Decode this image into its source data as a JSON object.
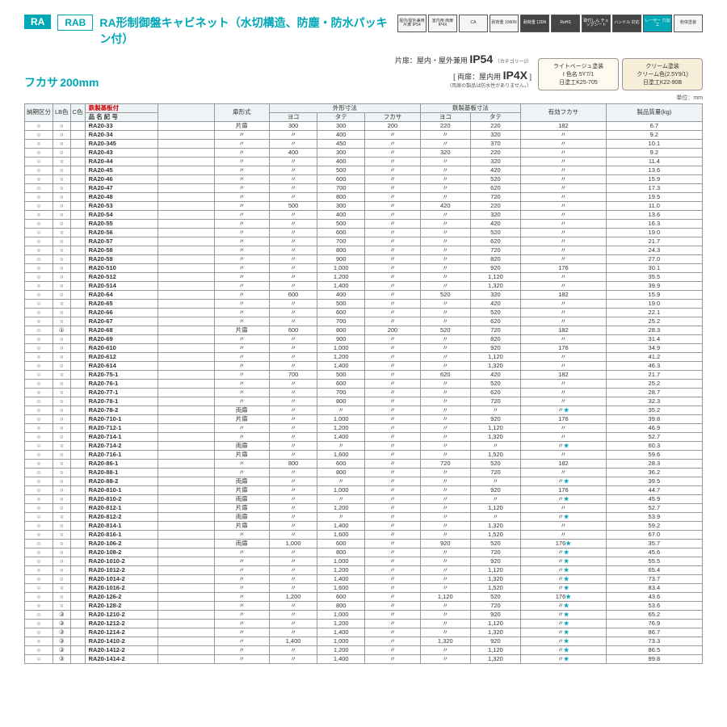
{
  "header": {
    "tag1": "RA",
    "tag2": "RAB",
    "title": "RA形制御盤キャビネット（水切構造、防塵・防水パッキン付）",
    "badges": [
      "屋内/屋外兼用\n片扉 IP54",
      "室内用\n両扉 IP4X",
      "CA",
      "耐荷重\n1080N",
      "耐荷重\n120N",
      "RoHS",
      "取付しん\nチェックシート",
      "ハンドル\n対応",
      "レーザー\n穴加工",
      "粉体塗装"
    ]
  },
  "sub": {
    "fukasa_label": "フカサ",
    "fukasa_val": "200mm",
    "door1_pre": "片扉：屋内・屋外兼用 ",
    "door1_ip": "IP54",
    "door1_note": "（カテゴリー2）",
    "door2_pre": "両扉：屋内用 ",
    "door2_ip": "IP4X",
    "door2_note": "（両扉の製品は防水性がありません。）",
    "paint1_title": "ライトベージュ塗装",
    "paint1_l1": "I 色名 5Y7/1",
    "paint1_l2": "日塗工K25-705",
    "paint2_title": "クリーム塗装",
    "paint2_l1": "クリーム色(2.5Y9/1)",
    "paint2_l2": "日塗工K22-90B",
    "unit": "単位：mm"
  },
  "columns": {
    "c0": "納期区分",
    "c1": "LB色",
    "c2": "C色",
    "c3_top": "鉄製基板付",
    "c3": "品 名 記 号",
    "c4": "",
    "c5": "扉形式",
    "g1": "外形寸法",
    "c6": "ヨコ",
    "c7": "タテ",
    "c8": "フカサ",
    "g2": "鉄製基板寸法",
    "c9": "ヨコ",
    "c10": "タテ",
    "c11": "有効フカサ",
    "c12": "製品質量(kg)",
    "c13": "摘記"
  },
  "data": [
    [
      "○",
      "○",
      "",
      "RA20-33",
      "",
      "片扉",
      "300",
      "300",
      "200",
      "220",
      "220",
      "182",
      "6.7",
      ""
    ],
    [
      "○",
      "○",
      "",
      "RA20-34",
      "",
      "〃",
      "〃",
      "400",
      "〃",
      "〃",
      "320",
      "〃",
      "9.2",
      ""
    ],
    [
      "○",
      "○",
      "",
      "RA20-345",
      "",
      "〃",
      "〃",
      "450",
      "〃",
      "〃",
      "370",
      "〃",
      "10.1",
      ""
    ],
    [
      "○",
      "○",
      "",
      "RA20-43",
      "",
      "〃",
      "400",
      "300",
      "〃",
      "320",
      "220",
      "〃",
      "9.2",
      "g"
    ],
    [
      "○",
      "○",
      "",
      "RA20-44",
      "",
      "〃",
      "〃",
      "400",
      "〃",
      "〃",
      "320",
      "〃",
      "11.4",
      ""
    ],
    [
      "○",
      "○",
      "",
      "RA20-45",
      "",
      "〃",
      "〃",
      "500",
      "〃",
      "〃",
      "420",
      "〃",
      "13.6",
      ""
    ],
    [
      "○",
      "○",
      "",
      "RA20-46",
      "",
      "〃",
      "〃",
      "600",
      "〃",
      "〃",
      "520",
      "〃",
      "15.9",
      ""
    ],
    [
      "○",
      "○",
      "",
      "RA20-47",
      "",
      "〃",
      "〃",
      "700",
      "〃",
      "〃",
      "620",
      "〃",
      "17.3",
      ""
    ],
    [
      "○",
      "○",
      "",
      "RA20-48",
      "",
      "〃",
      "〃",
      "800",
      "〃",
      "〃",
      "720",
      "〃",
      "19.5",
      ""
    ],
    [
      "○",
      "○",
      "",
      "RA20-53",
      "",
      "〃",
      "500",
      "300",
      "〃",
      "420",
      "220",
      "〃",
      "11.0",
      "g"
    ],
    [
      "○",
      "○",
      "",
      "RA20-54",
      "",
      "〃",
      "〃",
      "400",
      "〃",
      "〃",
      "320",
      "〃",
      "13.6",
      ""
    ],
    [
      "○",
      "○",
      "",
      "RA20-55",
      "",
      "〃",
      "〃",
      "500",
      "〃",
      "〃",
      "420",
      "〃",
      "16.3",
      ""
    ],
    [
      "○",
      "○",
      "",
      "RA20-56",
      "",
      "〃",
      "〃",
      "600",
      "〃",
      "〃",
      "520",
      "〃",
      "19.0",
      ""
    ],
    [
      "○",
      "○",
      "",
      "RA20-57",
      "",
      "〃",
      "〃",
      "700",
      "〃",
      "〃",
      "620",
      "〃",
      "21.7",
      ""
    ],
    [
      "○",
      "○",
      "",
      "RA20-58",
      "",
      "〃",
      "〃",
      "800",
      "〃",
      "〃",
      "720",
      "〃",
      "24.3",
      ""
    ],
    [
      "○",
      "○",
      "",
      "RA20-59",
      "",
      "〃",
      "〃",
      "900",
      "〃",
      "〃",
      "820",
      "〃",
      "27.0",
      ""
    ],
    [
      "○",
      "○",
      "",
      "RA20-510",
      "",
      "〃",
      "〃",
      "1,000",
      "〃",
      "〃",
      "920",
      "176",
      "30.1",
      ""
    ],
    [
      "○",
      "○",
      "",
      "RA20-512",
      "",
      "〃",
      "〃",
      "1,200",
      "〃",
      "〃",
      "1,120",
      "〃",
      "35.5",
      ""
    ],
    [
      "○",
      "○",
      "",
      "RA20-514",
      "",
      "〃",
      "〃",
      "1,400",
      "〃",
      "〃",
      "1,320",
      "〃",
      "39.9",
      ""
    ],
    [
      "○",
      "○",
      "",
      "RA20-64",
      "",
      "〃",
      "600",
      "400",
      "〃",
      "520",
      "320",
      "182",
      "15.9",
      "g"
    ],
    [
      "○",
      "○",
      "",
      "RA20-65",
      "",
      "〃",
      "〃",
      "500",
      "〃",
      "〃",
      "420",
      "〃",
      "19.0",
      ""
    ],
    [
      "○",
      "○",
      "",
      "RA20-66",
      "",
      "〃",
      "〃",
      "600",
      "〃",
      "〃",
      "520",
      "〃",
      "22.1",
      ""
    ],
    [
      "○",
      "○",
      "",
      "RA20-67",
      "",
      "〃",
      "〃",
      "700",
      "〃",
      "〃",
      "620",
      "〃",
      "25.2",
      ""
    ],
    [
      "○",
      "①",
      "",
      "RA20-68",
      "",
      "片扉",
      "600",
      "800",
      "200",
      "520",
      "720",
      "182",
      "28.3",
      "g"
    ],
    [
      "○",
      "○",
      "",
      "RA20-69",
      "",
      "〃",
      "〃",
      "900",
      "〃",
      "〃",
      "820",
      "〃",
      "31.4",
      ""
    ],
    [
      "○",
      "○",
      "",
      "RA20-610",
      "",
      "〃",
      "〃",
      "1,000",
      "〃",
      "〃",
      "920",
      "176",
      "34.9",
      ""
    ],
    [
      "○",
      "○",
      "",
      "RA20-612",
      "",
      "〃",
      "〃",
      "1,200",
      "〃",
      "〃",
      "1,120",
      "〃",
      "41.2",
      ""
    ],
    [
      "○",
      "○",
      "",
      "RA20-614",
      "",
      "〃",
      "〃",
      "1,400",
      "〃",
      "〃",
      "1,320",
      "〃",
      "46.3",
      ""
    ],
    [
      "○",
      "○",
      "",
      "RA20-75-1",
      "",
      "〃",
      "700",
      "500",
      "〃",
      "620",
      "420",
      "182",
      "21.7",
      "g"
    ],
    [
      "○",
      "○",
      "",
      "RA20-76-1",
      "",
      "〃",
      "〃",
      "600",
      "〃",
      "〃",
      "520",
      "〃",
      "25.2",
      ""
    ],
    [
      "○",
      "○",
      "",
      "RA20-77-1",
      "",
      "〃",
      "〃",
      "700",
      "〃",
      "〃",
      "620",
      "〃",
      "28.7",
      ""
    ],
    [
      "○",
      "○",
      "",
      "RA20-78-1",
      "",
      "〃",
      "〃",
      "800",
      "〃",
      "〃",
      "720",
      "〃",
      "32.3",
      ""
    ],
    [
      "○",
      "○",
      "",
      "RA20-78-2",
      "",
      "両扉",
      "〃",
      "〃",
      "〃",
      "〃",
      "〃",
      "〃★",
      "35.2",
      "g"
    ],
    [
      "○",
      "○",
      "",
      "RA20-710-1",
      "",
      "片扉",
      "〃",
      "1,000",
      "〃",
      "〃",
      "920",
      "176",
      "39.8",
      "g"
    ],
    [
      "○",
      "○",
      "",
      "RA20-712-1",
      "",
      "〃",
      "〃",
      "1,200",
      "〃",
      "〃",
      "1,120",
      "〃",
      "46.9",
      ""
    ],
    [
      "○",
      "○",
      "",
      "RA20-714-1",
      "",
      "〃",
      "〃",
      "1,400",
      "〃",
      "〃",
      "1,320",
      "〃",
      "52.7",
      ""
    ],
    [
      "○",
      "○",
      "",
      "RA20-714-2",
      "",
      "両扉",
      "〃",
      "〃",
      "〃",
      "〃",
      "〃",
      "〃★",
      "60.3",
      "g"
    ],
    [
      "○",
      "○",
      "",
      "RA20-716-1",
      "",
      "片扉",
      "〃",
      "1,600",
      "〃",
      "〃",
      "1,520",
      "〃",
      "59.6",
      "g"
    ],
    [
      "○",
      "○",
      "",
      "RA20-86-1",
      "",
      "〃",
      "800",
      "600",
      "〃",
      "720",
      "520",
      "182",
      "28.3",
      "g"
    ],
    [
      "○",
      "○",
      "",
      "RA20-88-1",
      "",
      "〃",
      "〃",
      "800",
      "〃",
      "〃",
      "720",
      "〃",
      "36.2",
      ""
    ],
    [
      "○",
      "○",
      "",
      "RA20-88-2",
      "",
      "両扉",
      "〃",
      "〃",
      "〃",
      "〃",
      "〃",
      "〃★",
      "39.5",
      "g"
    ],
    [
      "○",
      "○",
      "",
      "RA20-810-1",
      "",
      "片扉",
      "〃",
      "1,000",
      "〃",
      "〃",
      "920",
      "176",
      "44.7",
      "g"
    ],
    [
      "○",
      "○",
      "",
      "RA20-810-2",
      "",
      "両扉",
      "〃",
      "〃",
      "〃",
      "〃",
      "〃",
      "〃★",
      "45.9",
      "g"
    ],
    [
      "○",
      "○",
      "",
      "RA20-812-1",
      "",
      "片扉",
      "〃",
      "1,200",
      "〃",
      "〃",
      "1,120",
      "〃",
      "52.7",
      "g"
    ],
    [
      "○",
      "○",
      "",
      "RA20-812-2",
      "",
      "両扉",
      "〃",
      "〃",
      "〃",
      "〃",
      "〃",
      "〃★",
      "53.9",
      "g"
    ],
    [
      "○",
      "○",
      "",
      "RA20-814-1",
      "",
      "片扉",
      "〃",
      "1,400",
      "〃",
      "〃",
      "1,320",
      "〃",
      "59.2",
      "g"
    ],
    [
      "○",
      "○",
      "",
      "RA20-816-1",
      "",
      "〃",
      "〃",
      "1,600",
      "〃",
      "〃",
      "1,520",
      "〃",
      "67.0",
      ""
    ],
    [
      "○",
      "○",
      "",
      "RA20-106-2",
      "",
      "両扉",
      "1,000",
      "600",
      "〃",
      "920",
      "520",
      "176★",
      "35.7",
      "g"
    ],
    [
      "○",
      "○",
      "",
      "RA20-108-2",
      "",
      "〃",
      "〃",
      "800",
      "〃",
      "〃",
      "720",
      "〃★",
      "45.6",
      ""
    ],
    [
      "○",
      "○",
      "",
      "RA20-1010-2",
      "",
      "〃",
      "〃",
      "1,000",
      "〃",
      "〃",
      "920",
      "〃★",
      "55.5",
      ""
    ],
    [
      "○",
      "○",
      "",
      "RA20-1012-2",
      "",
      "〃",
      "〃",
      "1,200",
      "〃",
      "〃",
      "1,120",
      "〃★",
      "65.4",
      ""
    ],
    [
      "○",
      "○",
      "",
      "RA20-1014-2",
      "",
      "〃",
      "〃",
      "1,400",
      "〃",
      "〃",
      "1,320",
      "〃★",
      "73.7",
      ""
    ],
    [
      "○",
      "○",
      "",
      "RA20-1016-2",
      "",
      "〃",
      "〃",
      "1,600",
      "〃",
      "〃",
      "1,520",
      "〃★",
      "83.4",
      ""
    ],
    [
      "○",
      "○",
      "",
      "RA20-126-2",
      "",
      "〃",
      "1,200",
      "600",
      "〃",
      "1,120",
      "520",
      "176★",
      "43.6",
      "g"
    ],
    [
      "○",
      "○",
      "",
      "RA20-128-2",
      "",
      "〃",
      "〃",
      "800",
      "〃",
      "〃",
      "720",
      "〃★",
      "53.6",
      ""
    ],
    [
      "○",
      "③",
      "",
      "RA20-1210-2",
      "",
      "〃",
      "〃",
      "1,000",
      "〃",
      "〃",
      "920",
      "〃★",
      "65.2",
      ""
    ],
    [
      "○",
      "③",
      "",
      "RA20-1212-2",
      "",
      "〃",
      "〃",
      "1,200",
      "〃",
      "〃",
      "1,120",
      "〃★",
      "76.9",
      ""
    ],
    [
      "○",
      "③",
      "",
      "RA20-1214-2",
      "",
      "〃",
      "〃",
      "1,400",
      "〃",
      "〃",
      "1,320",
      "〃★",
      "86.7",
      ""
    ],
    [
      "○",
      "③",
      "",
      "RA20-1410-2",
      "",
      "〃",
      "1,400",
      "1,000",
      "〃",
      "1,320",
      "920",
      "〃★",
      "73.3",
      "g"
    ],
    [
      "○",
      "③",
      "",
      "RA20-1412-2",
      "",
      "〃",
      "〃",
      "1,200",
      "〃",
      "〃",
      "1,120",
      "〃★",
      "86.5",
      ""
    ],
    [
      "○",
      "③",
      "",
      "RA20-1414-2",
      "",
      "〃",
      "〃",
      "1,400",
      "〃",
      "〃",
      "1,320",
      "〃★",
      "99.8",
      ""
    ]
  ]
}
